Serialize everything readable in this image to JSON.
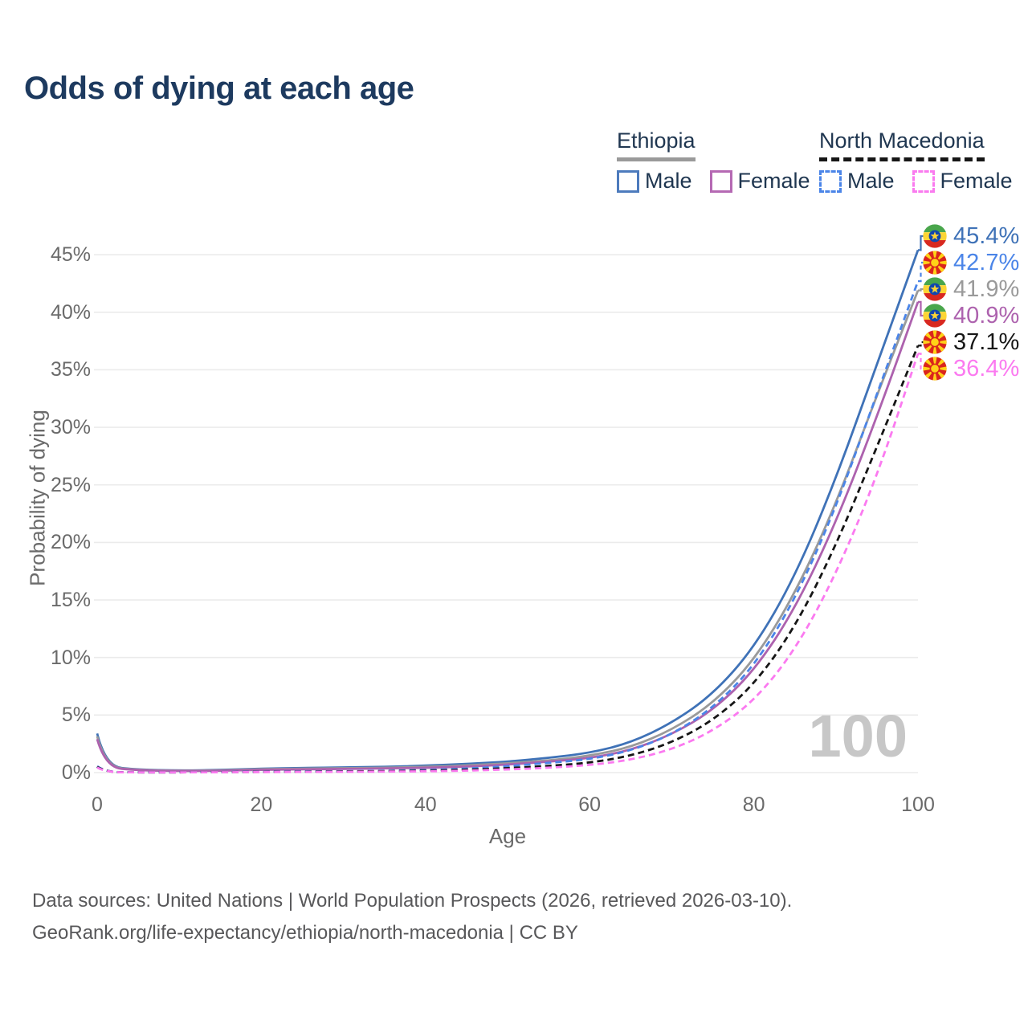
{
  "page": {
    "title": "Odds of dying at each age",
    "hover_age_watermark": "100"
  },
  "legend": {
    "groups": [
      {
        "label": "Ethiopia",
        "underline_color": "#9a9a9a",
        "underline_style": "solid",
        "items": [
          {
            "label": "Male",
            "swatch_color": "#4d7bbd",
            "swatch_style": "solid"
          },
          {
            "label": "Female",
            "swatch_color": "#b569b3",
            "swatch_style": "solid"
          }
        ]
      },
      {
        "label": "North Macedonia",
        "underline_color": "#161616",
        "underline_style": "dashed",
        "items": [
          {
            "label": "Male",
            "swatch_color": "#4b85e8",
            "swatch_style": "dashed"
          },
          {
            "label": "Female",
            "swatch_color": "#fa7bef",
            "swatch_style": "dashed"
          }
        ]
      }
    ]
  },
  "chart_data": {
    "type": "line",
    "title": "Odds of dying at each age",
    "xlabel": "Age",
    "ylabel": "Probability of dying",
    "xlim": [
      0,
      100
    ],
    "ylim": [
      0,
      47
    ],
    "x_ticks": [
      0,
      20,
      40,
      60,
      80,
      100
    ],
    "y_ticks": [
      0,
      5,
      10,
      15,
      20,
      25,
      30,
      35,
      40,
      45
    ],
    "grid": "horizontal-only",
    "legend_position": "top-right",
    "ages": [
      0,
      1,
      5,
      10,
      15,
      20,
      25,
      30,
      35,
      40,
      45,
      50,
      55,
      60,
      65,
      70,
      75,
      80,
      85,
      90,
      95,
      100
    ],
    "series": [
      {
        "name": "Ethiopia Male",
        "country": "ethiopia",
        "sex": "male",
        "color": "#3f72b7",
        "dash": "solid",
        "end_label": "45.4%",
        "values": [
          3.4,
          0.55,
          0.25,
          0.18,
          0.22,
          0.35,
          0.4,
          0.45,
          0.5,
          0.6,
          0.75,
          0.95,
          1.28,
          1.7,
          2.6,
          4.3,
          6.8,
          10.8,
          17.0,
          25.5,
          35.5,
          45.4
        ]
      },
      {
        "name": "North Macedonia Male",
        "country": "north-macedonia",
        "sex": "male",
        "color": "#4b85e8",
        "dash": "dashed",
        "end_label": "42.7%",
        "values": [
          0.55,
          0.05,
          0.02,
          0.02,
          0.05,
          0.08,
          0.1,
          0.12,
          0.15,
          0.22,
          0.35,
          0.55,
          0.85,
          1.15,
          1.9,
          3.3,
          5.6,
          9.2,
          15.0,
          23.0,
          32.9,
          42.7
        ]
      },
      {
        "name": "Ethiopia Both sexes",
        "country": "ethiopia",
        "sex": "both",
        "color": "#9a9a9a",
        "dash": "solid",
        "end_label": "41.9%",
        "values": [
          3.15,
          0.5,
          0.22,
          0.16,
          0.19,
          0.3,
          0.34,
          0.38,
          0.42,
          0.5,
          0.62,
          0.8,
          1.05,
          1.45,
          2.2,
          3.7,
          6.0,
          9.7,
          15.5,
          23.3,
          32.8,
          41.9
        ]
      },
      {
        "name": "Ethiopia Female",
        "country": "ethiopia",
        "sex": "female",
        "color": "#ad62ae",
        "dash": "solid",
        "end_label": "40.9%",
        "values": [
          2.9,
          0.45,
          0.2,
          0.14,
          0.16,
          0.25,
          0.28,
          0.32,
          0.36,
          0.42,
          0.52,
          0.7,
          0.95,
          1.25,
          1.95,
          3.3,
          5.4,
          8.8,
          14.2,
          21.7,
          30.9,
          40.9
        ]
      },
      {
        "name": "North Macedonia Both sexes",
        "country": "north-macedonia",
        "sex": "both",
        "color": "#161616",
        "dash": "dashed",
        "end_label": "37.1%",
        "values": [
          0.5,
          0.04,
          0.02,
          0.02,
          0.04,
          0.06,
          0.08,
          0.1,
          0.12,
          0.16,
          0.25,
          0.38,
          0.58,
          0.85,
          1.45,
          2.6,
          4.5,
          7.6,
          12.6,
          19.7,
          28.3,
          37.1
        ]
      },
      {
        "name": "North Macedonia Female",
        "country": "north-macedonia",
        "sex": "female",
        "color": "#fb7af0",
        "dash": "dashed",
        "end_label": "36.4%",
        "values": [
          0.45,
          0.04,
          0.02,
          0.02,
          0.03,
          0.05,
          0.06,
          0.07,
          0.09,
          0.11,
          0.17,
          0.27,
          0.42,
          0.65,
          1.1,
          2.0,
          3.6,
          6.2,
          10.6,
          17.2,
          25.7,
          36.4
        ]
      }
    ],
    "end_labels": [
      "45.4%",
      "42.7%",
      "41.9%",
      "40.9%",
      "37.1%",
      "36.4%"
    ]
  },
  "footer": {
    "line1": "Data sources: United Nations | World Population Prospects (2026, retrieved 2026-03-10).",
    "line2": "GeoRank.org/life-expectancy/ethiopia/north-macedonia | CC BY"
  }
}
